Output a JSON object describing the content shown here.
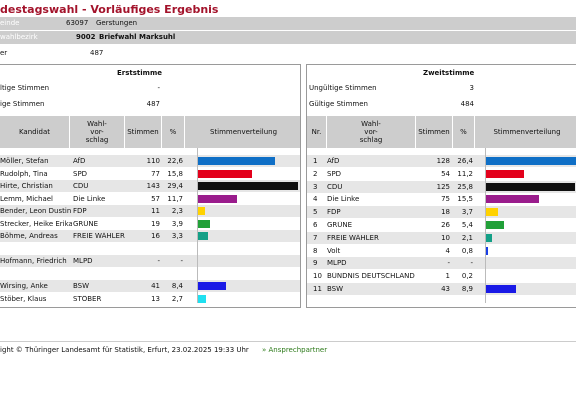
{
  "title": "destagswahl - Vorläufiges Ergebnis",
  "meta": {
    "gemeinde_label": "einde",
    "gemeinde_num": "63097",
    "gemeinde_name": "Gerstungen",
    "wahlbezirk_label": "wahlbezirk",
    "wahlbezirk_num": "9002",
    "wahlbezirk_name": "Briefwahl Marksuhl",
    "waehler_label": "er",
    "waehler_value": "487"
  },
  "erst": {
    "title": "Erststimme",
    "ungueltig_label": "ltige Stimmen",
    "ungueltig_value": "-",
    "gueltig_label": "ige Stimmen",
    "gueltig_value": "487",
    "headers": {
      "kandidat": "Kandidat",
      "wahlvorschlag": "Wahl-\nvor-\nschlag",
      "stimmen": "Stimmen",
      "pct": "%",
      "verteilung": "Stimmenverteilung"
    },
    "rows": [
      {
        "kandidat": "Möller, Stefan",
        "partei": "AfD",
        "stimmen": "110",
        "pct": "22,6",
        "value": 22.6,
        "color": "#0f6fc6"
      },
      {
        "kandidat": "Rudolph, Tina",
        "partei": "SPD",
        "stimmen": "77",
        "pct": "15,8",
        "value": 15.8,
        "color": "#e3001b"
      },
      {
        "kandidat": "Hirte, Christian",
        "partei": "CDU",
        "stimmen": "143",
        "pct": "29,4",
        "value": 29.4,
        "color": "#111111"
      },
      {
        "kandidat": "Lemm, Michael",
        "partei": "Die Linke",
        "stimmen": "57",
        "pct": "11,7",
        "value": 11.7,
        "color": "#9a1c8c"
      },
      {
        "kandidat": "Bender, Leon Dustin",
        "partei": "FDP",
        "stimmen": "11",
        "pct": "2,3",
        "value": 2.3,
        "color": "#ffd200"
      },
      {
        "kandidat": "Strecker, Heike Erika",
        "partei": "GRÜNE",
        "stimmen": "19",
        "pct": "3,9",
        "value": 3.9,
        "color": "#21a038"
      },
      {
        "kandidat": "Böhme, Andreas",
        "partei": "FREIE WÄHLER",
        "stimmen": "16",
        "pct": "3,3",
        "value": 3.3,
        "color": "#14a087"
      },
      {
        "kandidat": "",
        "partei": "",
        "stimmen": "",
        "pct": "",
        "value": 0,
        "color": "#ffffff"
      },
      {
        "kandidat": "Hofmann, Friedrich",
        "partei": "MLPD",
        "stimmen": "-",
        "pct": "-",
        "value": 0,
        "color": "#ffffff"
      },
      {
        "kandidat": "",
        "partei": "",
        "stimmen": "",
        "pct": "",
        "value": 0,
        "color": "#ffffff"
      },
      {
        "kandidat": "Wirsing, Anke",
        "partei": "BSW",
        "stimmen": "41",
        "pct": "8,4",
        "value": 8.4,
        "color": "#1a1ae6"
      },
      {
        "kandidat": "Stöber, Klaus",
        "partei": "STÖBER",
        "stimmen": "13",
        "pct": "2,7",
        "value": 2.7,
        "color": "#1fe0f0"
      }
    ]
  },
  "zweit": {
    "title": "Zweitstimme",
    "ungueltig_label": "Ungültige Stimmen",
    "ungueltig_value": "3",
    "gueltig_label": "Gültige Stimmen",
    "gueltig_value": "484",
    "headers": {
      "nr": "Nr.",
      "wahlvorschlag": "Wahl-\nvor-\nschlag",
      "stimmen": "Stimmen",
      "pct": "%",
      "verteilung": "Stimmenverteilung"
    },
    "rows": [
      {
        "nr": "1",
        "partei": "AfD",
        "stimmen": "128",
        "pct": "26,4",
        "value": 26.4,
        "color": "#0f6fc6"
      },
      {
        "nr": "2",
        "partei": "SPD",
        "stimmen": "54",
        "pct": "11,2",
        "value": 11.2,
        "color": "#e3001b"
      },
      {
        "nr": "3",
        "partei": "CDU",
        "stimmen": "125",
        "pct": "25,8",
        "value": 25.8,
        "color": "#111111"
      },
      {
        "nr": "4",
        "partei": "Die Linke",
        "stimmen": "75",
        "pct": "15,5",
        "value": 15.5,
        "color": "#9a1c8c"
      },
      {
        "nr": "5",
        "partei": "FDP",
        "stimmen": "18",
        "pct": "3,7",
        "value": 3.7,
        "color": "#ffd200"
      },
      {
        "nr": "6",
        "partei": "GRÜNE",
        "stimmen": "26",
        "pct": "5,4",
        "value": 5.4,
        "color": "#21a038"
      },
      {
        "nr": "7",
        "partei": "FREIE WÄHLER",
        "stimmen": "10",
        "pct": "2,1",
        "value": 2.1,
        "color": "#14a087"
      },
      {
        "nr": "8",
        "partei": "Volt",
        "stimmen": "4",
        "pct": "0,8",
        "value": 0.8,
        "color": "#1a3fe6"
      },
      {
        "nr": "9",
        "partei": "MLPD",
        "stimmen": "-",
        "pct": "-",
        "value": 0,
        "color": "#ffffff"
      },
      {
        "nr": "10",
        "partei": "BÜNDNIS DEUTSCHLAND",
        "stimmen": "1",
        "pct": "0,2",
        "value": 0.2,
        "color": "#1a3fe6"
      },
      {
        "nr": "11",
        "partei": "BSW",
        "stimmen": "43",
        "pct": "8,9",
        "value": 8.9,
        "color": "#1a1ae6"
      }
    ]
  },
  "footer": {
    "text": "ight © Thüringer Landesamt für Statistik, Erfurt, 23.02.2025 19:33 Uhr",
    "link": "» Ansprechpartner"
  }
}
